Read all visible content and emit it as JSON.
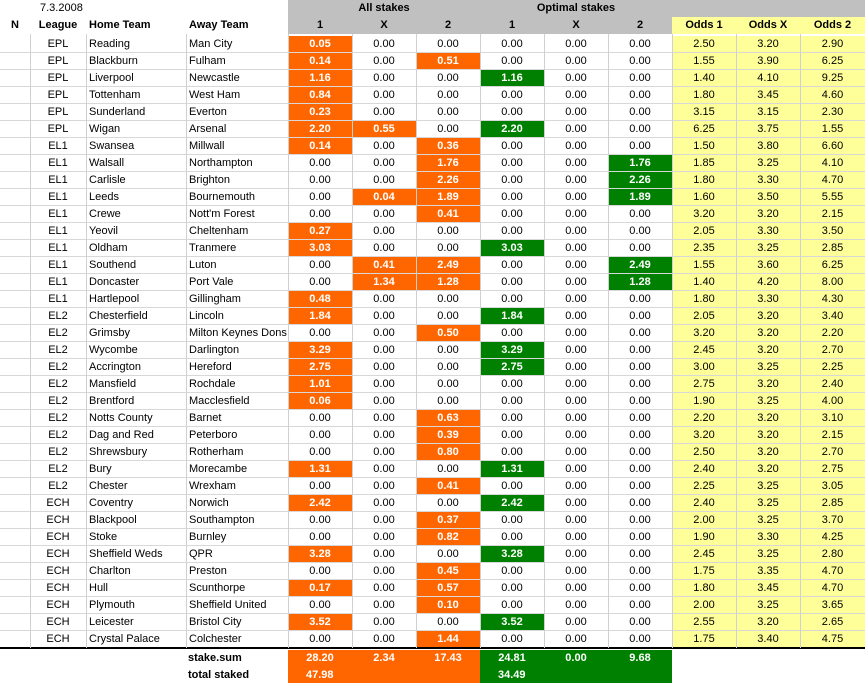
{
  "date": "7.3.2008",
  "group_headers": {
    "all_stakes": "All stakes",
    "optimal_stakes": "Optimal stakes"
  },
  "columns": {
    "n": "N",
    "league": "League",
    "home": "Home Team",
    "away": "Away Team",
    "all_1": "1",
    "all_x": "X",
    "all_2": "2",
    "opt_1": "1",
    "opt_x": "X",
    "opt_2": "2",
    "odds_1": "Odds 1",
    "odds_x": "Odds X",
    "odds_2": "Odds 2"
  },
  "colors": {
    "stake_highlight": "#ff6600",
    "optimal_highlight": "#008000",
    "odds_bg": "#ffff99",
    "header_bg": "#c0c0c0"
  },
  "rows": [
    {
      "league": "EPL",
      "home": "Reading",
      "away": "Man City",
      "all": [
        "0.05",
        "0.00",
        "0.00"
      ],
      "opt": [
        "0.00",
        "0.00",
        "0.00"
      ],
      "odds": [
        "2.50",
        "3.20",
        "2.90"
      ]
    },
    {
      "league": "EPL",
      "home": "Blackburn",
      "away": "Fulham",
      "all": [
        "0.14",
        "0.00",
        "0.51"
      ],
      "opt": [
        "0.00",
        "0.00",
        "0.00"
      ],
      "odds": [
        "1.55",
        "3.90",
        "6.25"
      ]
    },
    {
      "league": "EPL",
      "home": "Liverpool",
      "away": "Newcastle",
      "all": [
        "1.16",
        "0.00",
        "0.00"
      ],
      "opt": [
        "1.16",
        "0.00",
        "0.00"
      ],
      "odds": [
        "1.40",
        "4.10",
        "9.25"
      ]
    },
    {
      "league": "EPL",
      "home": "Tottenham",
      "away": "West Ham",
      "all": [
        "0.84",
        "0.00",
        "0.00"
      ],
      "opt": [
        "0.00",
        "0.00",
        "0.00"
      ],
      "odds": [
        "1.80",
        "3.45",
        "4.60"
      ]
    },
    {
      "league": "EPL",
      "home": "Sunderland",
      "away": "Everton",
      "all": [
        "0.23",
        "0.00",
        "0.00"
      ],
      "opt": [
        "0.00",
        "0.00",
        "0.00"
      ],
      "odds": [
        "3.15",
        "3.15",
        "2.30"
      ]
    },
    {
      "league": "EPL",
      "home": "Wigan",
      "away": "Arsenal",
      "all": [
        "2.20",
        "0.55",
        "0.00"
      ],
      "opt": [
        "2.20",
        "0.00",
        "0.00"
      ],
      "odds": [
        "6.25",
        "3.75",
        "1.55"
      ]
    },
    {
      "league": "EL1",
      "home": "Swansea",
      "away": "Millwall",
      "all": [
        "0.14",
        "0.00",
        "0.36"
      ],
      "opt": [
        "0.00",
        "0.00",
        "0.00"
      ],
      "odds": [
        "1.50",
        "3.80",
        "6.60"
      ]
    },
    {
      "league": "EL1",
      "home": "Walsall",
      "away": "Northampton",
      "all": [
        "0.00",
        "0.00",
        "1.76"
      ],
      "opt": [
        "0.00",
        "0.00",
        "1.76"
      ],
      "odds": [
        "1.85",
        "3.25",
        "4.10"
      ]
    },
    {
      "league": "EL1",
      "home": "Carlisle",
      "away": "Brighton",
      "all": [
        "0.00",
        "0.00",
        "2.26"
      ],
      "opt": [
        "0.00",
        "0.00",
        "2.26"
      ],
      "odds": [
        "1.80",
        "3.30",
        "4.70"
      ]
    },
    {
      "league": "EL1",
      "home": "Leeds",
      "away": "Bournemouth",
      "all": [
        "0.00",
        "0.04",
        "1.89"
      ],
      "opt": [
        "0.00",
        "0.00",
        "1.89"
      ],
      "odds": [
        "1.60",
        "3.50",
        "5.55"
      ]
    },
    {
      "league": "EL1",
      "home": "Crewe",
      "away": "Nott'm Forest",
      "all": [
        "0.00",
        "0.00",
        "0.41"
      ],
      "opt": [
        "0.00",
        "0.00",
        "0.00"
      ],
      "odds": [
        "3.20",
        "3.20",
        "2.15"
      ]
    },
    {
      "league": "EL1",
      "home": "Yeovil",
      "away": "Cheltenham",
      "all": [
        "0.27",
        "0.00",
        "0.00"
      ],
      "opt": [
        "0.00",
        "0.00",
        "0.00"
      ],
      "odds": [
        "2.05",
        "3.30",
        "3.50"
      ]
    },
    {
      "league": "EL1",
      "home": "Oldham",
      "away": "Tranmere",
      "all": [
        "3.03",
        "0.00",
        "0.00"
      ],
      "opt": [
        "3.03",
        "0.00",
        "0.00"
      ],
      "odds": [
        "2.35",
        "3.25",
        "2.85"
      ]
    },
    {
      "league": "EL1",
      "home": "Southend",
      "away": "Luton",
      "all": [
        "0.00",
        "0.41",
        "2.49"
      ],
      "opt": [
        "0.00",
        "0.00",
        "2.49"
      ],
      "odds": [
        "1.55",
        "3.60",
        "6.25"
      ]
    },
    {
      "league": "EL1",
      "home": "Doncaster",
      "away": "Port Vale",
      "all": [
        "0.00",
        "1.34",
        "1.28"
      ],
      "opt": [
        "0.00",
        "0.00",
        "1.28"
      ],
      "odds": [
        "1.40",
        "4.20",
        "8.00"
      ]
    },
    {
      "league": "EL1",
      "home": "Hartlepool",
      "away": "Gillingham",
      "all": [
        "0.48",
        "0.00",
        "0.00"
      ],
      "opt": [
        "0.00",
        "0.00",
        "0.00"
      ],
      "odds": [
        "1.80",
        "3.30",
        "4.30"
      ]
    },
    {
      "league": "EL2",
      "home": "Chesterfield",
      "away": "Lincoln",
      "all": [
        "1.84",
        "0.00",
        "0.00"
      ],
      "opt": [
        "1.84",
        "0.00",
        "0.00"
      ],
      "odds": [
        "2.05",
        "3.20",
        "3.40"
      ]
    },
    {
      "league": "EL2",
      "home": "Grimsby",
      "away": "Milton Keynes Dons",
      "all": [
        "0.00",
        "0.00",
        "0.50"
      ],
      "opt": [
        "0.00",
        "0.00",
        "0.00"
      ],
      "odds": [
        "3.20",
        "3.20",
        "2.20"
      ]
    },
    {
      "league": "EL2",
      "home": "Wycombe",
      "away": "Darlington",
      "all": [
        "3.29",
        "0.00",
        "0.00"
      ],
      "opt": [
        "3.29",
        "0.00",
        "0.00"
      ],
      "odds": [
        "2.45",
        "3.20",
        "2.70"
      ]
    },
    {
      "league": "EL2",
      "home": "Accrington",
      "away": "Hereford",
      "all": [
        "2.75",
        "0.00",
        "0.00"
      ],
      "opt": [
        "2.75",
        "0.00",
        "0.00"
      ],
      "odds": [
        "3.00",
        "3.25",
        "2.25"
      ]
    },
    {
      "league": "EL2",
      "home": "Mansfield",
      "away": "Rochdale",
      "all": [
        "1.01",
        "0.00",
        "0.00"
      ],
      "opt": [
        "0.00",
        "0.00",
        "0.00"
      ],
      "odds": [
        "2.75",
        "3.20",
        "2.40"
      ]
    },
    {
      "league": "EL2",
      "home": "Brentford",
      "away": "Macclesfield",
      "all": [
        "0.06",
        "0.00",
        "0.00"
      ],
      "opt": [
        "0.00",
        "0.00",
        "0.00"
      ],
      "odds": [
        "1.90",
        "3.25",
        "4.00"
      ]
    },
    {
      "league": "EL2",
      "home": "Notts County",
      "away": "Barnet",
      "all": [
        "0.00",
        "0.00",
        "0.63"
      ],
      "opt": [
        "0.00",
        "0.00",
        "0.00"
      ],
      "odds": [
        "2.20",
        "3.20",
        "3.10"
      ]
    },
    {
      "league": "EL2",
      "home": "Dag and Red",
      "away": "Peterboro",
      "all": [
        "0.00",
        "0.00",
        "0.39"
      ],
      "opt": [
        "0.00",
        "0.00",
        "0.00"
      ],
      "odds": [
        "3.20",
        "3.20",
        "2.15"
      ]
    },
    {
      "league": "EL2",
      "home": "Shrewsbury",
      "away": "Rotherham",
      "all": [
        "0.00",
        "0.00",
        "0.80"
      ],
      "opt": [
        "0.00",
        "0.00",
        "0.00"
      ],
      "odds": [
        "2.50",
        "3.20",
        "2.70"
      ]
    },
    {
      "league": "EL2",
      "home": "Bury",
      "away": "Morecambe",
      "all": [
        "1.31",
        "0.00",
        "0.00"
      ],
      "opt": [
        "1.31",
        "0.00",
        "0.00"
      ],
      "odds": [
        "2.40",
        "3.20",
        "2.75"
      ]
    },
    {
      "league": "EL2",
      "home": "Chester",
      "away": "Wrexham",
      "all": [
        "0.00",
        "0.00",
        "0.41"
      ],
      "opt": [
        "0.00",
        "0.00",
        "0.00"
      ],
      "odds": [
        "2.25",
        "3.25",
        "3.05"
      ]
    },
    {
      "league": "ECH",
      "home": "Coventry",
      "away": "Norwich",
      "all": [
        "2.42",
        "0.00",
        "0.00"
      ],
      "opt": [
        "2.42",
        "0.00",
        "0.00"
      ],
      "odds": [
        "2.40",
        "3.25",
        "2.85"
      ]
    },
    {
      "league": "ECH",
      "home": "Blackpool",
      "away": "Southampton",
      "all": [
        "0.00",
        "0.00",
        "0.37"
      ],
      "opt": [
        "0.00",
        "0.00",
        "0.00"
      ],
      "odds": [
        "2.00",
        "3.25",
        "3.70"
      ]
    },
    {
      "league": "ECH",
      "home": "Stoke",
      "away": "Burnley",
      "all": [
        "0.00",
        "0.00",
        "0.82"
      ],
      "opt": [
        "0.00",
        "0.00",
        "0.00"
      ],
      "odds": [
        "1.90",
        "3.30",
        "4.25"
      ]
    },
    {
      "league": "ECH",
      "home": "Sheffield Weds",
      "away": "QPR",
      "all": [
        "3.28",
        "0.00",
        "0.00"
      ],
      "opt": [
        "3.28",
        "0.00",
        "0.00"
      ],
      "odds": [
        "2.45",
        "3.25",
        "2.80"
      ]
    },
    {
      "league": "ECH",
      "home": "Charlton",
      "away": "Preston",
      "all": [
        "0.00",
        "0.00",
        "0.45"
      ],
      "opt": [
        "0.00",
        "0.00",
        "0.00"
      ],
      "odds": [
        "1.75",
        "3.35",
        "4.70"
      ]
    },
    {
      "league": "ECH",
      "home": "Hull",
      "away": "Scunthorpe",
      "all": [
        "0.17",
        "0.00",
        "0.57"
      ],
      "opt": [
        "0.00",
        "0.00",
        "0.00"
      ],
      "odds": [
        "1.80",
        "3.45",
        "4.70"
      ]
    },
    {
      "league": "ECH",
      "home": "Plymouth",
      "away": "Sheffield United",
      "all": [
        "0.00",
        "0.00",
        "0.10"
      ],
      "opt": [
        "0.00",
        "0.00",
        "0.00"
      ],
      "odds": [
        "2.00",
        "3.25",
        "3.65"
      ]
    },
    {
      "league": "ECH",
      "home": "Leicester",
      "away": "Bristol City",
      "all": [
        "3.52",
        "0.00",
        "0.00"
      ],
      "opt": [
        "3.52",
        "0.00",
        "0.00"
      ],
      "odds": [
        "2.55",
        "3.20",
        "2.65"
      ]
    },
    {
      "league": "ECH",
      "home": "Crystal Palace",
      "away": "Colchester",
      "all": [
        "0.00",
        "0.00",
        "1.44"
      ],
      "opt": [
        "0.00",
        "0.00",
        "0.00"
      ],
      "odds": [
        "1.75",
        "3.40",
        "4.75"
      ]
    }
  ],
  "summary": {
    "stake_sum_label": "stake.sum",
    "total_staked_label": "total staked",
    "all_sum": [
      "28.20",
      "2.34",
      "17.43"
    ],
    "opt_sum": [
      "24.81",
      "0.00",
      "9.68"
    ],
    "all_total": "47.98",
    "opt_total": "34.49"
  }
}
